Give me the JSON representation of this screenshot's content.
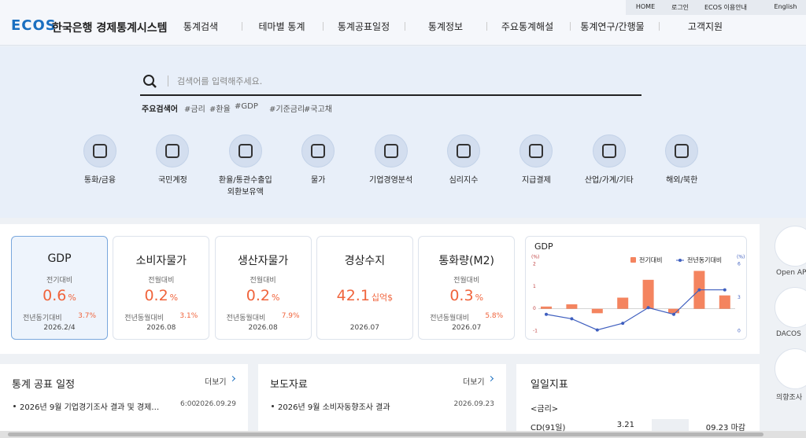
{
  "topbar": {
    "links": [
      "HOME",
      "로그인",
      "ECOS 이용안내",
      "English"
    ]
  },
  "header": {
    "logo": "ECOS",
    "site_name": "한국은행 경제통계시스템",
    "nav": [
      "통계검색",
      "테마별 통계",
      "통계공표일정",
      "통계정보",
      "주요통계해설",
      "통계연구/간행물",
      "고객지원"
    ]
  },
  "search": {
    "placeholder": "검색어를 입력해주세요.",
    "popular_label": "주요검색어",
    "popular": [
      "#금리",
      "#환율",
      "#GDP",
      "#기준금리",
      "#국고채"
    ]
  },
  "categories": [
    [
      "통화/금융"
    ],
    [
      "국민계정"
    ],
    [
      "환율/통관수출입",
      "외환보유액"
    ],
    [
      "물가"
    ],
    [
      "기업경영분석"
    ],
    [
      "심리지수"
    ],
    [
      "지급결제"
    ],
    [
      "산업/가계/기타"
    ],
    [
      "해외/북한"
    ]
  ],
  "cards": [
    {
      "title": "GDP",
      "sub": "전기대비",
      "value": "0.6",
      "unit": "%",
      "sub2": "전년동기대비",
      "sub2_value": "3.7%",
      "date": "2026.2/4"
    },
    {
      "title": "소비자물가",
      "sub": "전월대비",
      "value": "0.2",
      "unit": "%",
      "sub2": "전년동월대비",
      "sub2_value": "3.1%",
      "date": "2026.08"
    },
    {
      "title": "생산자물가",
      "sub": "전월대비",
      "value": "0.2",
      "unit": "%",
      "sub2": "전년동월대비",
      "sub2_value": "7.9%",
      "date": "2026.08"
    },
    {
      "title": "경상수지",
      "value": "42.1",
      "unit": "십억$",
      "date": "2026.07"
    },
    {
      "title": "통화량(M2)",
      "sub": "전월대비",
      "value": "0.3",
      "unit": "%",
      "sub2": "전년동월대비",
      "sub2_value": "5.8%",
      "date": "2026.07"
    }
  ],
  "gdp_chart": {
    "type": "bar",
    "title": "GDP",
    "y_label": "(%)",
    "y2_label": "(%)",
    "categories": [
      null,
      null,
      null,
      null,
      null,
      null,
      null,
      null
    ],
    "ylim": [
      -1,
      2
    ],
    "yticks": [
      2,
      1,
      0,
      -1
    ],
    "y2lim": [
      0,
      6
    ],
    "y2ticks": [
      6,
      3,
      0
    ],
    "series": [
      {
        "name": "전기대비",
        "color": "#f4845f",
        "type": "bar",
        "values": [
          0.1,
          0.2,
          -0.2,
          0.5,
          1.3,
          -0.2,
          1.7,
          0.6
        ]
      },
      {
        "name": "전년동기대비",
        "color": "#3f5fbf",
        "type": "line",
        "axis": "y2",
        "values": [
          1.5,
          1.1,
          0.1,
          0.7,
          2.1,
          1.5,
          3.7,
          3.7
        ]
      }
    ]
  },
  "schedule": {
    "title": "통계 공표 일정",
    "more": "더보기",
    "items": [
      {
        "text": "2026년 9월 기업경기조사 결과 및 경제…",
        "time": "6:00",
        "date": "2026.09.29"
      }
    ]
  },
  "press": {
    "title": "보도자료",
    "more": "더보기",
    "items": [
      {
        "text": "2026년 9월 소비자동향조사 결과",
        "date": "2026.09.23"
      }
    ]
  },
  "daily": {
    "title": "일일지표",
    "group": "<금리>",
    "rows": [
      {
        "name": "CD(91일)",
        "value": "3.21",
        "date": "09.23 마감"
      }
    ]
  },
  "sidebar": [
    "Open API",
    "DACOS",
    "의향조사"
  ]
}
